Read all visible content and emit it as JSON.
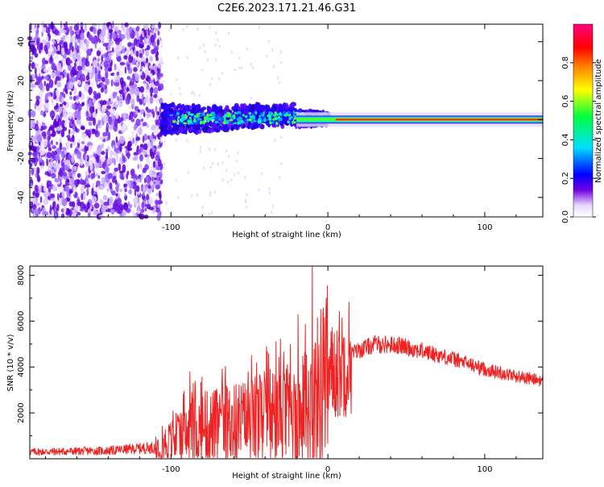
{
  "title": "C2E6.2023.171.21.46.G31",
  "chart_data": [
    {
      "type": "heatmap",
      "xlabel": "Height of straight line (km)",
      "ylabel": "Frequency (Hz)",
      "xlim": [
        -190,
        137
      ],
      "ylim": [
        -50,
        49
      ],
      "xticks": [
        "-100",
        "0",
        "100"
      ],
      "yticks": [
        "-40",
        "-20",
        "0",
        "20",
        "40"
      ],
      "colorbar": {
        "label": "Normalized spectral amplitude",
        "ticks": [
          "0.0",
          "0.2",
          "0.4",
          "0.6",
          "0.8"
        ],
        "range": [
          0,
          1
        ],
        "colors": [
          "#ffffff",
          "#7000e0",
          "#0000ff",
          "#00e0ff",
          "#00ff40",
          "#ffff00",
          "#ff8000",
          "#ff0000",
          "#ff0080"
        ]
      },
      "regions": {
        "noise_end_km": -106,
        "signal_center_hz": 0
      }
    },
    {
      "type": "line",
      "xlabel": "Height of straight line (km)",
      "ylabel": "SNR (10 * v/v)",
      "xlim": [
        -190,
        137
      ],
      "ylim": [
        0,
        8400
      ],
      "xticks": [
        "-100",
        "0",
        "100"
      ],
      "yticks": [
        "2000",
        "4000",
        "6000",
        "8000"
      ],
      "color": "#ee2222",
      "envelope": [
        {
          "x": -190,
          "y": 300
        },
        {
          "x": -140,
          "y": 350
        },
        {
          "x": -110,
          "y": 500
        },
        {
          "x": -95,
          "y": 900
        },
        {
          "x": -80,
          "y": 1300
        },
        {
          "x": -60,
          "y": 1500
        },
        {
          "x": -40,
          "y": 1700
        },
        {
          "x": -20,
          "y": 1900
        },
        {
          "x": -12,
          "y": 2200
        },
        {
          "x": -5,
          "y": 3000
        },
        {
          "x": 5,
          "y": 4000
        },
        {
          "x": 15,
          "y": 4600
        },
        {
          "x": 30,
          "y": 5000
        },
        {
          "x": 45,
          "y": 4950
        },
        {
          "x": 60,
          "y": 4700
        },
        {
          "x": 80,
          "y": 4350
        },
        {
          "x": 100,
          "y": 3900
        },
        {
          "x": 120,
          "y": 3600
        },
        {
          "x": 137,
          "y": 3400
        }
      ],
      "peaks": [
        {
          "x": -10,
          "y": 8400
        },
        {
          "x": -19,
          "y": 6300
        },
        {
          "x": -24,
          "y": 5000
        },
        {
          "x": -88,
          "y": 3800
        }
      ]
    }
  ]
}
